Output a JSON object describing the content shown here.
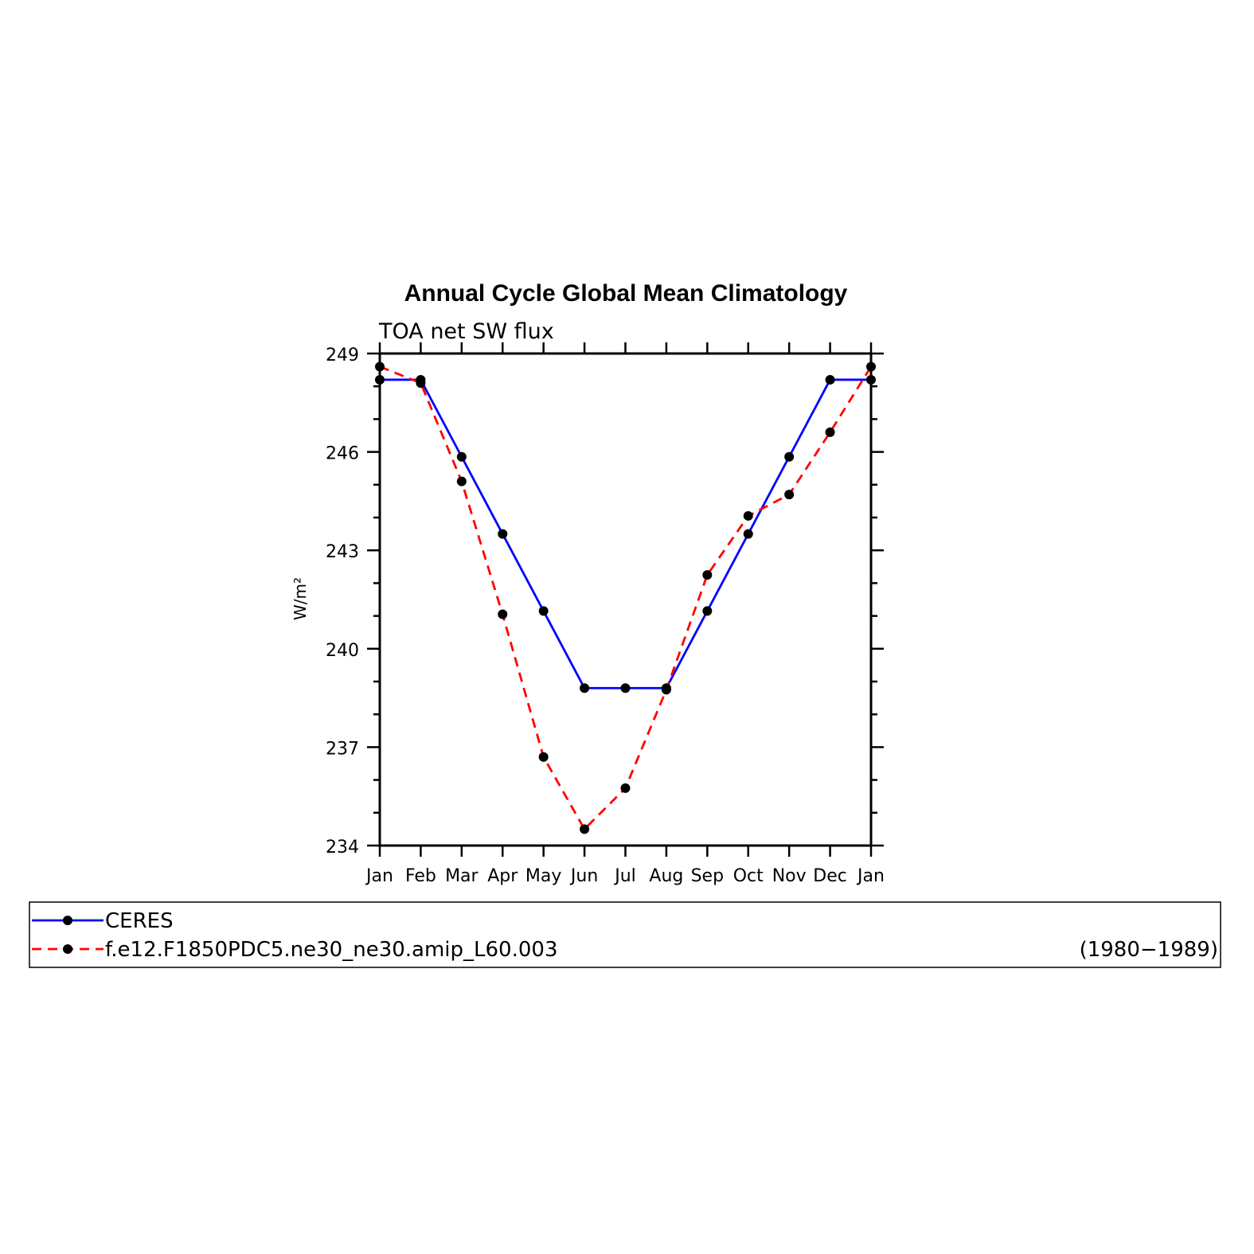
{
  "chart_data": {
    "type": "line",
    "title": "Annual Cycle Global Mean Climatology",
    "subtitle": "TOA net SW flux",
    "xlabel": "",
    "ylabel": "W/m²",
    "categories": [
      "Jan",
      "Feb",
      "Mar",
      "Apr",
      "May",
      "Jun",
      "Jul",
      "Aug",
      "Sep",
      "Oct",
      "Nov",
      "Dec",
      "Jan"
    ],
    "yticks": [
      "234",
      "237",
      "240",
      "243",
      "246",
      "249"
    ],
    "ylim": [
      234,
      249
    ],
    "grid": false,
    "legend_position": "bottom",
    "series": [
      {
        "name": "CERES",
        "color": "#0000ff",
        "dash": "solid",
        "values": [
          248.2,
          248.2,
          245.85,
          243.5,
          241.15,
          238.8,
          238.8,
          238.8,
          241.15,
          243.5,
          245.85,
          248.2,
          248.2
        ]
      },
      {
        "name": "f.e12.F1850PDC5.ne30_ne30.amip_L60.003",
        "color": "#ff0000",
        "dash": "dashed",
        "period": "(1980−1989)",
        "values": [
          248.6,
          248.1,
          245.1,
          241.05,
          236.7,
          234.5,
          235.75,
          238.75,
          242.25,
          244.05,
          244.7,
          246.6,
          248.6
        ]
      }
    ]
  }
}
